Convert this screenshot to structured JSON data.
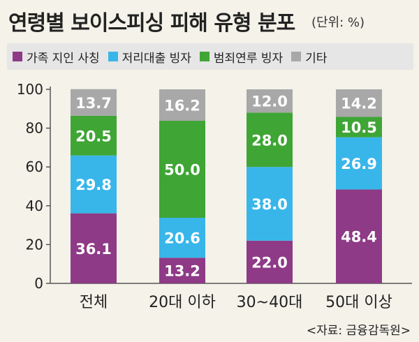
{
  "header": {
    "title": "연령별 보이스피싱 피해 유형 분포",
    "unit": "(단위: %)"
  },
  "source": "<자료: 금융감독원>",
  "chart_data": {
    "type": "bar",
    "stacked": true,
    "title": "연령별 보이스피싱 피해 유형 분포",
    "categories": [
      "전체",
      "20대 이하",
      "30~40대",
      "50대 이상"
    ],
    "series": [
      {
        "name": "가족 지인 사칭",
        "color": "#8e3a86",
        "values": [
          36.1,
          13.2,
          22.0,
          48.4
        ]
      },
      {
        "name": "저리대출 빙자",
        "color": "#38b6ea",
        "values": [
          29.8,
          20.6,
          38.0,
          26.9
        ]
      },
      {
        "name": "범죄연루 빙자",
        "color": "#3fa535",
        "values": [
          20.5,
          50.0,
          28.0,
          10.5
        ]
      },
      {
        "name": "기타",
        "color": "#a8a8a8",
        "values": [
          13.7,
          16.2,
          12.0,
          14.2
        ]
      }
    ],
    "ylim": [
      0,
      100
    ],
    "yticks": [
      0,
      20,
      40,
      60,
      80,
      100
    ],
    "grid": false,
    "legend": "top"
  }
}
